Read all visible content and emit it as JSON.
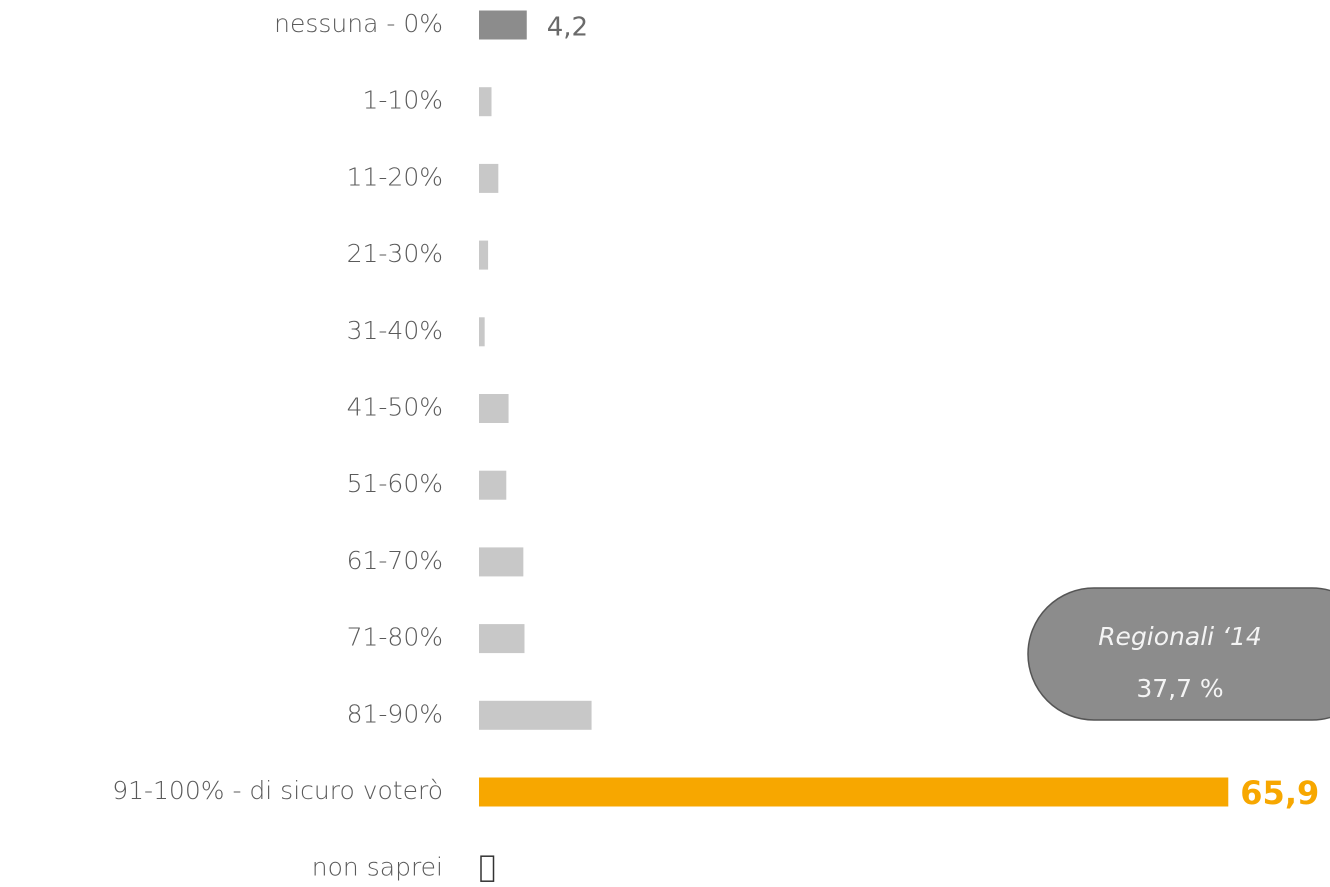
{
  "chart_data": {
    "type": "bar",
    "orientation": "horizontal",
    "categories": [
      "nessuna - 0%",
      "1-10%",
      "11-20%",
      "21-30%",
      "31-40%",
      "41-50%",
      "51-60%",
      "61-70%",
      "71-80%",
      "81-90%",
      "91-100% - di sicuro voterò",
      "non saprei"
    ],
    "values": [
      4.2,
      1.1,
      1.7,
      0.8,
      0.5,
      2.6,
      2.4,
      3.9,
      4.0,
      9.9,
      65.9,
      1.1
    ],
    "value_labels": [
      "4,2",
      null,
      null,
      null,
      null,
      null,
      null,
      null,
      null,
      null,
      "65,9",
      null
    ],
    "colors": [
      "#8c8c8c",
      "#c8c8c8",
      "#c8c8c8",
      "#c8c8c8",
      "#c8c8c8",
      "#c8c8c8",
      "#c8c8c8",
      "#c8c8c8",
      "#c8c8c8",
      "#c8c8c8",
      "#f7a700",
      "#ffffff"
    ],
    "annotations": [
      "Regionali ‘14",
      "37,7 %"
    ]
  }
}
